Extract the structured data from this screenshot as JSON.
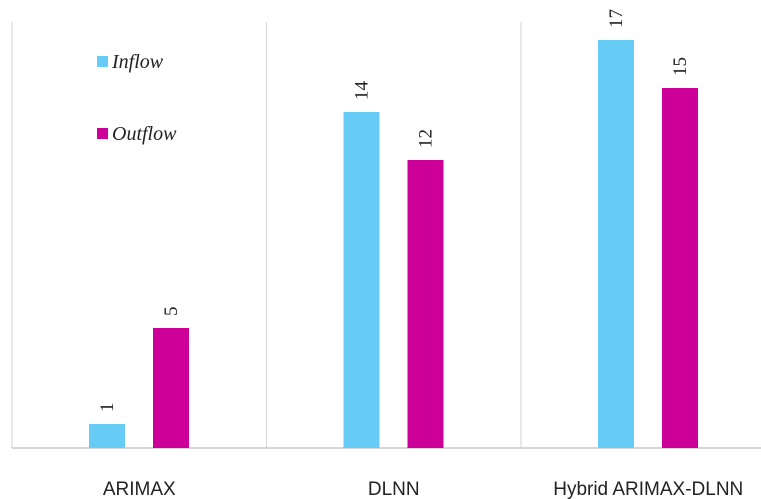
{
  "chart_data": {
    "type": "bar",
    "categories": [
      "ARIMAX",
      "DLNN",
      "Hybrid ARIMAX-DLNN"
    ],
    "series": [
      {
        "name": "Inflow",
        "values": [
          1,
          14,
          17
        ],
        "color": "#66ccf5"
      },
      {
        "name": "Outflow",
        "values": [
          5,
          12,
          15
        ],
        "color": "#cc0099"
      }
    ],
    "ylim": [
      0,
      18
    ],
    "grid": "vertical category separators",
    "legend": "top-left",
    "data_labels": "rotated vertical, above bars",
    "title": "",
    "xlabel": "",
    "ylabel": ""
  }
}
